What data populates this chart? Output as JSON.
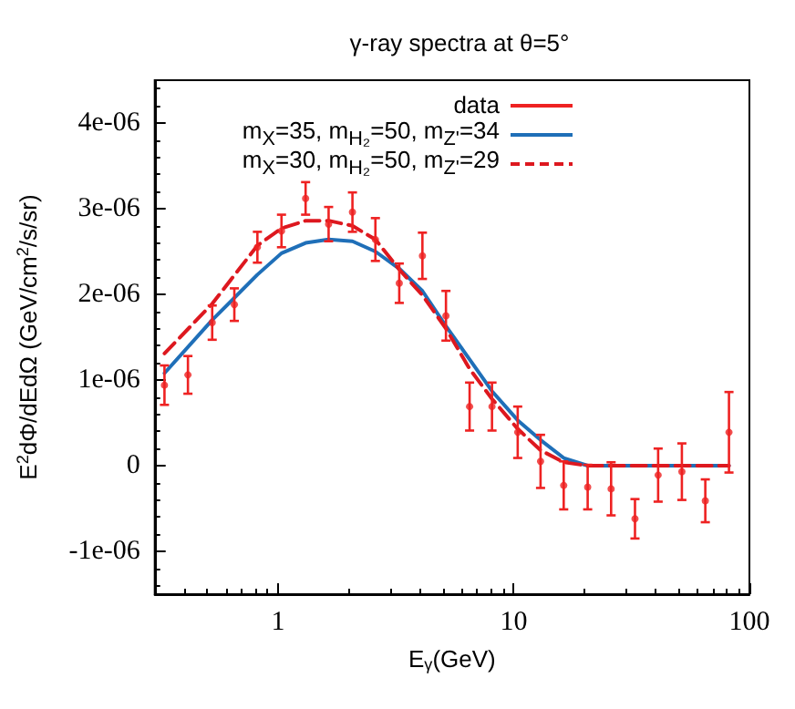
{
  "chart_data": {
    "type": "line",
    "title": "γ-ray spectra at θ=5°",
    "xlabel": "E$_{γ}$(GeV)",
    "ylabel": "E$^{2}$dΦ/dEdΩ (GeV/cm$^{2}$/s/sr)",
    "log": "x",
    "xlim": [
      0.3,
      100
    ],
    "xticks": [
      1,
      10,
      100
    ],
    "ylim": [
      -1.5e-06,
      4.5e-06
    ],
    "yticks": [
      {
        "value": -1e-06,
        "label": "-1e-06"
      },
      {
        "value": 0,
        "label": "0"
      },
      {
        "value": 1e-06,
        "label": "1e-06"
      },
      {
        "value": 2e-06,
        "label": "2e-06"
      },
      {
        "value": 3e-06,
        "label": "3e-06"
      },
      {
        "value": 4e-06,
        "label": "4e-06"
      }
    ],
    "grid": false,
    "legend": "top",
    "series": [
      {
        "name": "data",
        "type": "scatter",
        "color": "#ee2222",
        "x": [
          0.33,
          0.415,
          0.526,
          0.653,
          0.818,
          1.035,
          1.31,
          1.64,
          2.07,
          2.59,
          3.27,
          4.1,
          5.16,
          6.5,
          8.09,
          10.4,
          13.0,
          16.3,
          20.6,
          25.9,
          32.7,
          41.0,
          51.7,
          65.0,
          81.9
        ],
        "values": [
          9.4e-07,
          1.06e-06,
          1.67e-06,
          1.88e-06,
          2.55e-06,
          2.74e-06,
          3.12e-06,
          2.82e-06,
          2.96e-06,
          2.64e-06,
          2.13e-06,
          2.45e-06,
          1.75e-06,
          6.9e-07,
          6.9e-07,
          3.9e-07,
          5e-08,
          -2.3e-07,
          -2.5e-07,
          -2.7e-07,
          -6.2e-07,
          -1.1e-07,
          -7e-08,
          -4.1e-07,
          3.9e-07
        ],
        "errors": [
          2.3e-07,
          2.2e-07,
          2e-07,
          1.9e-07,
          1.8e-07,
          1.9e-07,
          1.9e-07,
          2e-07,
          2.3e-07,
          2.5e-07,
          2.3e-07,
          2.7e-07,
          2.9e-07,
          2.8e-07,
          2.8e-07,
          3e-07,
          3.1e-07,
          2.8e-07,
          2.6e-07,
          3.1e-07,
          2.3e-07,
          3.1e-07,
          3.3e-07,
          2.5e-07,
          4.7e-07
        ]
      },
      {
        "name": "m$_{X}$=35, m$_{H₂}$=50, m$_{Z'}$=34",
        "type": "line",
        "color": "#1f6fb8",
        "line_style": "solid",
        "x": [
          0.33,
          0.526,
          0.818,
          1.035,
          1.31,
          1.64,
          2.07,
          2.59,
          3.27,
          4.1,
          5.16,
          6.5,
          8.09,
          10.4,
          13.0,
          16.3,
          20.6,
          81.9
        ],
        "values": [
          1.08e-06,
          1.7e-06,
          2.23e-06,
          2.48e-06,
          2.6e-06,
          2.64e-06,
          2.62e-06,
          2.5e-06,
          2.3e-06,
          2.04e-06,
          1.63e-06,
          1.24e-06,
          8.7e-07,
          5.3e-07,
          3e-07,
          9e-08,
          0,
          0
        ]
      },
      {
        "name": "m$_{X}$=30, m$_{H₂}$=50, m$_{Z'}$=29",
        "type": "line",
        "color": "#dd181f",
        "line_style": "dashed",
        "x": [
          0.33,
          0.526,
          0.818,
          1.035,
          1.31,
          1.64,
          2.07,
          2.59,
          3.27,
          4.1,
          5.16,
          6.5,
          8.09,
          10.4,
          13.0,
          16.3,
          20.6,
          81.9
        ],
        "values": [
          1.31e-06,
          1.89e-06,
          2.57e-06,
          2.77e-06,
          2.86e-06,
          2.86e-06,
          2.8e-06,
          2.64e-06,
          2.29e-06,
          1.99e-06,
          1.6e-06,
          1.13e-06,
          7.8e-07,
          4.3e-07,
          1.8e-07,
          4e-08,
          0,
          0
        ]
      }
    ]
  }
}
